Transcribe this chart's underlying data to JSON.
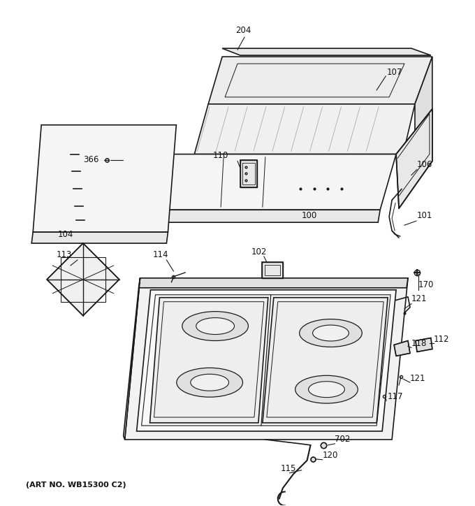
{
  "title": "",
  "art_no": "(ART NO. WB15300 C2)",
  "bg_color": "#ffffff",
  "line_color": "#1a1a1a",
  "label_color": "#111111",
  "figsize": [
    6.8,
    7.24
  ],
  "dpi": 100
}
